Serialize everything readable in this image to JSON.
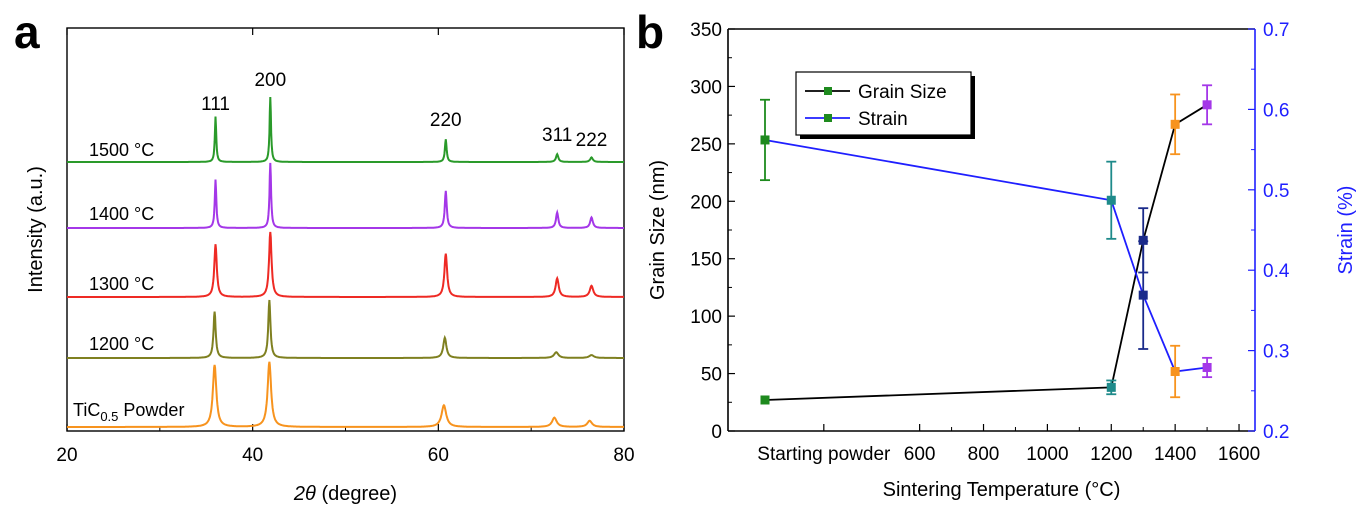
{
  "chart_data": [
    {
      "panel": "a",
      "type": "line",
      "xlabel_italic": "2θ",
      "xlabel_rest": " (degree)",
      "ylabel": "Intensity (a.u.)",
      "xlim": [
        20,
        80
      ],
      "xticks": [
        20,
        40,
        60,
        80
      ],
      "peak_labels": [
        {
          "text": "111",
          "x": 36.0
        },
        {
          "text": "200",
          "x": 41.9
        },
        {
          "text": "220",
          "x": 60.8
        },
        {
          "text": "311",
          "x": 72.8
        },
        {
          "text": "222",
          "x": 76.5
        }
      ],
      "series": [
        {
          "name": "TiC",
          "sub": "0.5",
          "suffix": " Powder",
          "color": "#f7931e",
          "peaks": [
            [
              35.9,
              1.0,
              0.45
            ],
            [
              41.8,
              1.05,
              0.45
            ],
            [
              60.6,
              0.35,
              0.6
            ],
            [
              72.5,
              0.15,
              0.6
            ],
            [
              76.3,
              0.1,
              0.6
            ]
          ]
        },
        {
          "name": "1200 °C",
          "color": "#7f8020",
          "peaks": [
            [
              35.9,
              0.8,
              0.28
            ],
            [
              41.8,
              1.0,
              0.28
            ],
            [
              60.7,
              0.35,
              0.4
            ],
            [
              72.7,
              0.1,
              0.55
            ],
            [
              76.5,
              0.05,
              0.6
            ]
          ]
        },
        {
          "name": "1300 °C",
          "color": "#ee2a24",
          "peaks": [
            [
              36.0,
              0.85,
              0.32
            ],
            [
              41.9,
              1.05,
              0.32
            ],
            [
              60.8,
              0.7,
              0.35
            ],
            [
              72.8,
              0.3,
              0.4
            ],
            [
              76.5,
              0.18,
              0.45
            ]
          ]
        },
        {
          "name": "1400 °C",
          "color": "#a437e8",
          "peaks": [
            [
              36.0,
              0.78,
              0.2
            ],
            [
              41.9,
              1.05,
              0.2
            ],
            [
              60.8,
              0.6,
              0.25
            ],
            [
              72.8,
              0.25,
              0.3
            ],
            [
              76.5,
              0.17,
              0.35
            ]
          ]
        },
        {
          "name": "1500 °C",
          "color": "#2a9a2a",
          "peaks": [
            [
              36.0,
              0.7,
              0.18
            ],
            [
              41.9,
              1.0,
              0.18
            ],
            [
              60.8,
              0.35,
              0.22
            ],
            [
              72.8,
              0.12,
              0.3
            ],
            [
              76.5,
              0.07,
              0.35
            ]
          ]
        }
      ]
    },
    {
      "panel": "b",
      "type": "line",
      "xlabel": "Sintering Temperature (°C)",
      "ylabel_left": "Grain Size (nm)",
      "ylabel_right": "Strain (%)",
      "ylim_left": [
        0,
        350
      ],
      "ylim_right": [
        0.2,
        0.7
      ],
      "xlim": [
        0,
        1650
      ],
      "xticks": [
        {
          "label": "Starting powder",
          "x": 300
        },
        {
          "label": "600",
          "x": 600
        },
        {
          "label": "800",
          "x": 800
        },
        {
          "label": "1000",
          "x": 1000
        },
        {
          "label": "1200",
          "x": 1200
        },
        {
          "label": "1400",
          "x": 1400
        },
        {
          "label": "1600",
          "x": 1600
        }
      ],
      "yticks_left": [
        0,
        50,
        100,
        150,
        200,
        250,
        300,
        350
      ],
      "yticks_right": [
        "0.2",
        "0.3",
        "0.4",
        "0.5",
        "0.6",
        "0.7"
      ],
      "legend": {
        "position": "top-left",
        "entries": [
          "Grain Size",
          "Strain"
        ]
      },
      "series": [
        {
          "name": "Grain Size",
          "color": "#000000",
          "axis": "left",
          "points": [
            {
              "x": 0,
              "y": 27,
              "err": 0,
              "marker": "#1e8a1e"
            },
            {
              "x": 1200,
              "y": 38,
              "err": 6,
              "marker": "#1e8a8a"
            },
            {
              "x": 1300,
              "y": 166,
              "err": 28,
              "marker": "#1a2a8a"
            },
            {
              "x": 1400,
              "y": 267,
              "err": 26,
              "marker": "#f7931e"
            },
            {
              "x": 1500,
              "y": 284,
              "err": 17,
              "marker": "#a437e8"
            }
          ]
        },
        {
          "name": "Strain",
          "color": "#1f1fff",
          "axis": "right",
          "points": [
            {
              "x": 0,
              "y": 0.562,
              "err": 0.05,
              "marker": "#1e8a1e"
            },
            {
              "x": 1200,
              "y": 0.487,
              "err": 0.048,
              "marker": "#1e8a8a"
            },
            {
              "x": 1300,
              "y": 0.369,
              "err": 0.067,
              "marker": "#1a2a8a"
            },
            {
              "x": 1400,
              "y": 0.274,
              "err": 0.032,
              "marker": "#f7931e"
            },
            {
              "x": 1500,
              "y": 0.279,
              "err": 0.012,
              "marker": "#a437e8"
            }
          ]
        }
      ]
    }
  ]
}
